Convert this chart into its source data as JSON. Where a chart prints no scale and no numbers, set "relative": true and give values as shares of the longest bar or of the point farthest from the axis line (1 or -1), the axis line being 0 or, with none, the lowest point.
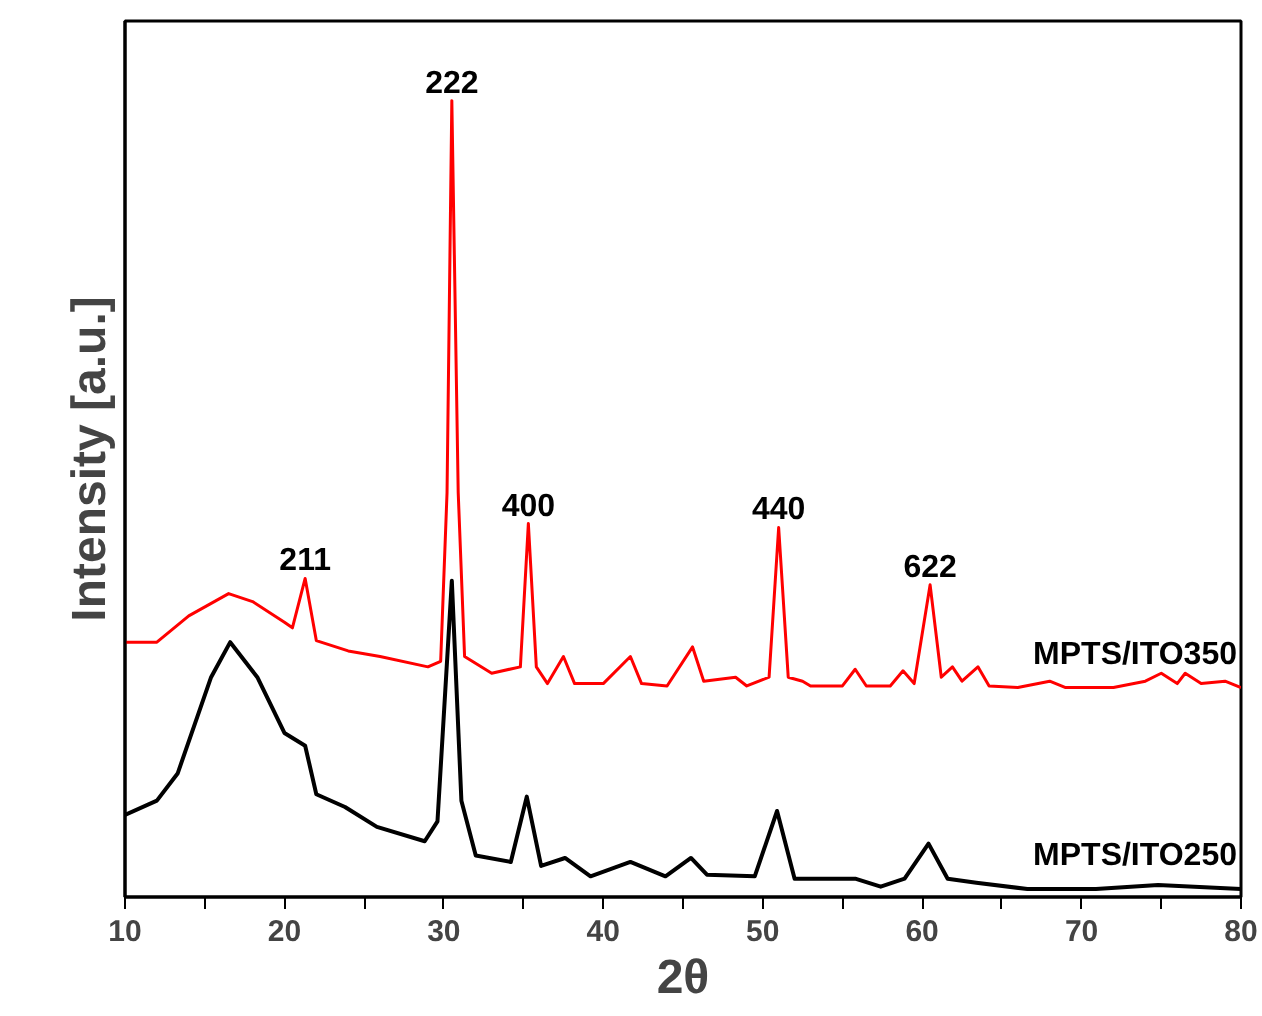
{
  "chart_data": {
    "type": "line",
    "relative": true,
    "xlabel": "2θ",
    "ylabel": "Intensity [a.u.]",
    "xlim": [
      10,
      80
    ],
    "xticks": [
      10,
      {
        "value": 15,
        "label": null
      },
      20,
      {
        "value": 25,
        "label": null
      },
      30,
      {
        "value": 35,
        "label": null
      },
      40,
      {
        "value": 45,
        "label": null
      },
      50,
      {
        "value": 55,
        "label": null
      },
      60,
      {
        "value": 65,
        "label": null
      },
      70,
      {
        "value": 75,
        "label": null
      },
      80
    ],
    "grid": false,
    "legend": false,
    "tick_labels": "x",
    "series": [
      {
        "name": "MPTS/ITO350",
        "color": "#ff0000",
        "x": [
          10,
          12,
          14,
          16.5,
          18,
          20,
          20.5,
          21.3,
          22,
          24,
          26,
          29,
          29.8,
          30.2,
          30.5,
          30.9,
          31.3,
          33,
          34.8,
          35.3,
          35.8,
          36.5,
          37.5,
          38.2,
          40,
          41.7,
          42.4,
          44,
          45.6,
          46.3,
          48.3,
          49,
          50.4,
          51,
          51.6,
          52.5,
          53,
          55,
          55.8,
          56.5,
          58,
          58.8,
          59.5,
          60.5,
          61.2,
          61.9,
          62.5,
          63.5,
          64.2,
          66,
          68,
          69,
          72,
          74,
          75,
          76,
          76.5,
          77.5,
          79,
          80
        ],
        "values": [
          0.32,
          0.32,
          0.353,
          0.381,
          0.371,
          0.345,
          0.338,
          0.4,
          0.322,
          0.309,
          0.302,
          0.289,
          0.296,
          0.508,
          1,
          0.508,
          0.302,
          0.281,
          0.289,
          0.469,
          0.289,
          0.268,
          0.302,
          0.268,
          0.268,
          0.302,
          0.268,
          0.265,
          0.314,
          0.271,
          0.276,
          0.265,
          0.276,
          0.464,
          0.276,
          0.271,
          0.265,
          0.265,
          0.286,
          0.265,
          0.265,
          0.284,
          0.268,
          0.392,
          0.276,
          0.289,
          0.271,
          0.289,
          0.265,
          0.263,
          0.271,
          0.263,
          0.263,
          0.271,
          0.281,
          0.268,
          0.281,
          0.268,
          0.271,
          0.263
        ]
      },
      {
        "name": "MPTS/ITO250",
        "color": "#000000",
        "x": [
          10,
          12,
          13.3,
          15.4,
          16.6,
          18.3,
          20,
          21.3,
          22,
          23.8,
          25.8,
          28.8,
          29.6,
          30.5,
          31.1,
          32,
          34.2,
          35.2,
          36.1,
          37.6,
          39.2,
          41.7,
          43.9,
          45.5,
          46.5,
          49.5,
          50.9,
          52,
          55.8,
          57.4,
          58.9,
          60.4,
          61.6,
          63.4,
          66.6,
          70.9,
          74.8,
          80
        ],
        "values": [
          0.103,
          0.121,
          0.155,
          0.276,
          0.32,
          0.276,
          0.206,
          0.19,
          0.129,
          0.113,
          0.088,
          0.07,
          0.095,
          0.397,
          0.121,
          0.052,
          0.044,
          0.126,
          0.039,
          0.049,
          0.026,
          0.044,
          0.026,
          0.049,
          0.028,
          0.026,
          0.108,
          0.023,
          0.023,
          0.013,
          0.023,
          0.067,
          0.023,
          0.018,
          0.01,
          0.01,
          0.015,
          0.01
        ]
      }
    ],
    "annotations": [
      {
        "text": "211",
        "x": 21.3,
        "y": 0.4
      },
      {
        "text": "222",
        "x": 30.5,
        "y": 1
      },
      {
        "text": "400",
        "x": 35.3,
        "y": 0.469
      },
      {
        "text": "440",
        "x": 51,
        "y": 0.464
      },
      {
        "text": "622",
        "x": 60.5,
        "y": 0.392
      }
    ]
  }
}
